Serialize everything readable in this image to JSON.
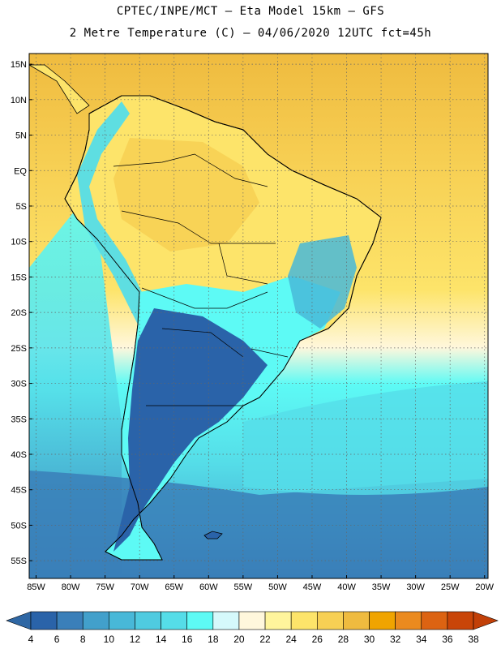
{
  "title": {
    "line1": "CPTEC/INPE/MCT –  Eta Model 15km – GFS",
    "line2": "2 Metre Temperature (C) – 04/06/2020 12UTC fct=45h"
  },
  "axes": {
    "lat_labels": [
      "15N",
      "10N",
      "5N",
      "EQ",
      "5S",
      "10S",
      "15S",
      "20S",
      "25S",
      "30S",
      "35S",
      "40S",
      "45S",
      "50S",
      "55S"
    ],
    "lon_labels": [
      "85W",
      "80W",
      "75W",
      "70W",
      "65W",
      "60W",
      "55W",
      "50W",
      "45W",
      "40W",
      "35W",
      "30W",
      "25W",
      "20W"
    ],
    "lat_range": [
      -57.5,
      16.5
    ],
    "lon_range": [
      -86,
      -19.5
    ],
    "grid": "dotted"
  },
  "colorbar": {
    "labels": [
      "4",
      "6",
      "8",
      "10",
      "12",
      "14",
      "16",
      "18",
      "20",
      "22",
      "24",
      "26",
      "28",
      "30",
      "32",
      "34",
      "36",
      "38"
    ],
    "colors": [
      "#2a63a9",
      "#3a7fb9",
      "#42a0cb",
      "#48b8d8",
      "#4fcbe0",
      "#55dde8",
      "#5dfaf5",
      "#d5f9fb",
      "#fff7dc",
      "#fff59c",
      "#fde46a",
      "#f7d054",
      "#efbb3f",
      "#f0a400",
      "#eb8a1e",
      "#dc6312",
      "#c94508"
    ],
    "low_arrow_color": "#2f67a4",
    "high_arrow_color": "#c24008"
  },
  "field_colors": {
    "ocean_north": "#efbb3f",
    "ocean_equator": "#f7d054",
    "ocean_subtropical": "#fde46a",
    "ocean_cool": "#5dfaf5",
    "ocean_mid": "#55dde8",
    "ocean_south": "#3a7fb9",
    "land_warm": "#fde46a",
    "land_cool": "#5dfaf5",
    "land_cold": "#2a63a9",
    "coast": "#000000"
  }
}
